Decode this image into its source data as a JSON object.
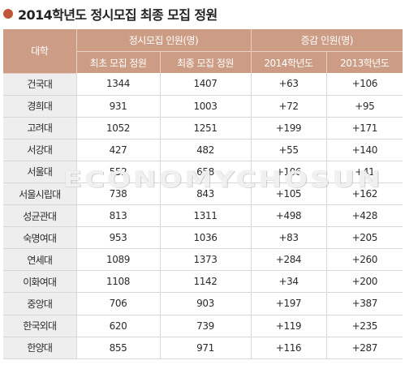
{
  "title": "2014학년도 정시모집 최종 모집 정원",
  "header": {
    "univ": "대학",
    "group1": "정시모집 인원(명)",
    "group2": "증감 인원(명)",
    "sub1": "최초 모집 정원",
    "sub2": "최종 모집 정원",
    "sub3": "2014학년도",
    "sub4": "2013학년도"
  },
  "rows": [
    {
      "univ": "건국대",
      "initial": "1344",
      "final": "1407",
      "change2014": "+63",
      "change2013": "+106"
    },
    {
      "univ": "경희대",
      "initial": "931",
      "final": "1003",
      "change2014": "+72",
      "change2013": "+95"
    },
    {
      "univ": "고려대",
      "initial": "1052",
      "final": "1251",
      "change2014": "+199",
      "change2013": "+171"
    },
    {
      "univ": "서강대",
      "initial": "427",
      "final": "482",
      "change2014": "+55",
      "change2013": "+140"
    },
    {
      "univ": "서울대",
      "initial": "552",
      "final": "658",
      "change2014": "+106",
      "change2013": "+41"
    },
    {
      "univ": "서울시립대",
      "initial": "738",
      "final": "843",
      "change2014": "+105",
      "change2013": "+162"
    },
    {
      "univ": "성균관대",
      "initial": "813",
      "final": "1311",
      "change2014": "+498",
      "change2013": "+428"
    },
    {
      "univ": "숙명여대",
      "initial": "953",
      "final": "1036",
      "change2014": "+83",
      "change2013": "+205"
    },
    {
      "univ": "연세대",
      "initial": "1089",
      "final": "1373",
      "change2014": "+284",
      "change2013": "+260"
    },
    {
      "univ": "이화여대",
      "initial": "1108",
      "final": "1142",
      "change2014": "+34",
      "change2013": "+200"
    },
    {
      "univ": "중앙대",
      "initial": "706",
      "final": "903",
      "change2014": "+197",
      "change2013": "+387"
    },
    {
      "univ": "한국외대",
      "initial": "620",
      "final": "739",
      "change2014": "+119",
      "change2013": "+235"
    },
    {
      "univ": "한양대",
      "initial": "855",
      "final": "971",
      "change2014": "+116",
      "change2013": "+287"
    }
  ],
  "watermark": "ECONOMYCHOSUN",
  "colors": {
    "accent": "#c0563a",
    "header_bg": "#cd9c84",
    "univ_bg": "#eeeeee"
  }
}
